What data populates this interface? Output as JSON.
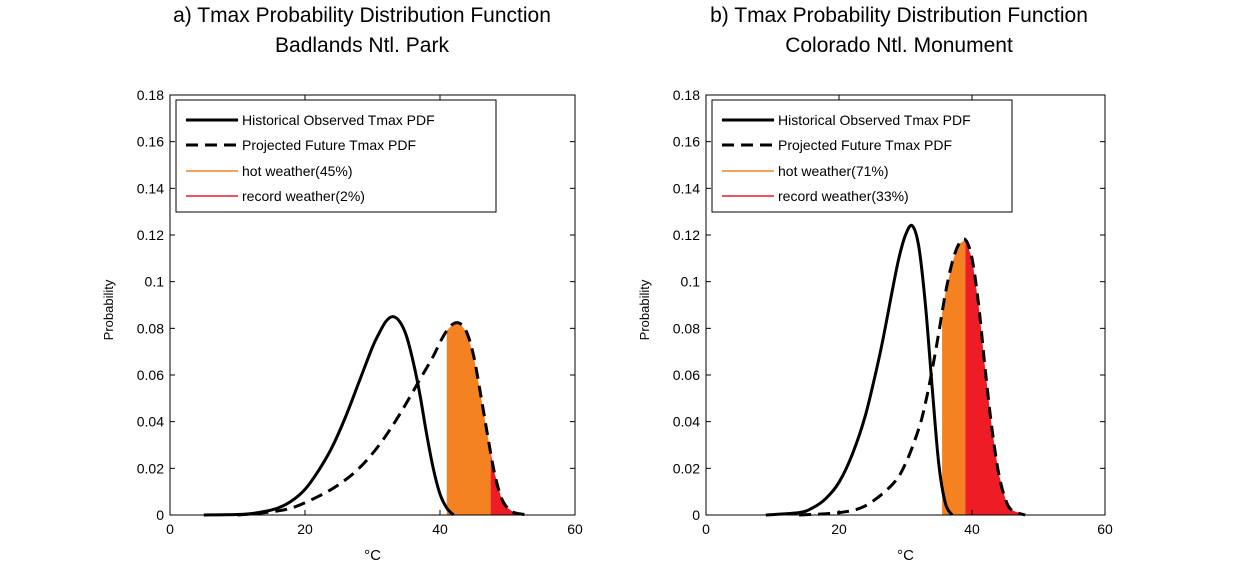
{
  "chart_data": [
    {
      "type": "line",
      "title": "a) Tmax Probability Distribution Function",
      "subtitle": "Badlands Ntl. Park",
      "xlabel": "°C",
      "ylabel": "Probability",
      "xlim": [
        0,
        60
      ],
      "ylim": [
        0,
        0.18
      ],
      "xticks": [
        "0",
        "20",
        "40",
        "60"
      ],
      "yticks": [
        "0",
        "0.02",
        "0.04",
        "0.06",
        "0.08",
        "0.1",
        "0.12",
        "0.14",
        "0.16",
        "0.18"
      ],
      "grid": false,
      "legend_position": "top-left",
      "series": [
        {
          "name": "Historical Observed Tmax PDF",
          "style": "solid",
          "color": "#000000",
          "x": [
            5,
            10,
            12,
            14,
            16,
            18,
            20,
            22,
            24,
            26,
            28,
            30,
            31,
            32,
            33,
            34,
            35,
            36,
            37,
            38,
            39,
            40,
            41,
            42
          ],
          "y": [
            0,
            0.0002,
            0.0006,
            0.0015,
            0.003,
            0.006,
            0.011,
            0.019,
            0.029,
            0.042,
            0.057,
            0.072,
            0.078,
            0.083,
            0.085,
            0.083,
            0.077,
            0.066,
            0.052,
            0.035,
            0.02,
            0.009,
            0.003,
            0
          ]
        },
        {
          "name": "Projected Future Tmax PDF",
          "style": "dashed",
          "color": "#000000",
          "x": [
            10,
            14,
            18,
            22,
            25,
            28,
            31,
            34,
            37,
            39,
            40,
            41,
            42,
            43,
            44,
            45,
            46,
            47,
            48,
            49,
            50,
            51,
            53
          ],
          "y": [
            0,
            0.001,
            0.003,
            0.008,
            0.013,
            0.02,
            0.03,
            0.043,
            0.058,
            0.068,
            0.074,
            0.079,
            0.082,
            0.082,
            0.078,
            0.068,
            0.052,
            0.035,
            0.019,
            0.008,
            0.003,
            0.001,
            0
          ]
        }
      ],
      "shaded_regions": [
        {
          "name": "hot weather(45%)",
          "color": "#f58220",
          "x_from": 41,
          "x_to": 47.5
        },
        {
          "name": "record weather(2%)",
          "color": "#ee1c24",
          "x_from": 47.5,
          "x_to": 53
        }
      ]
    },
    {
      "type": "line",
      "title": "b) Tmax Probability Distribution Function",
      "subtitle": "Colorado Ntl. Monument",
      "xlabel": "°C",
      "ylabel": "Probability",
      "xlim": [
        0,
        60
      ],
      "ylim": [
        0,
        0.18
      ],
      "xticks": [
        "0",
        "20",
        "40",
        "60"
      ],
      "yticks": [
        "0",
        "0.02",
        "0.04",
        "0.06",
        "0.08",
        "0.1",
        "0.12",
        "0.14",
        "0.16",
        "0.18"
      ],
      "grid": false,
      "legend_position": "top-left",
      "series": [
        {
          "name": "Historical Observed Tmax PDF",
          "style": "solid",
          "color": "#000000",
          "x": [
            9,
            14,
            16,
            18,
            20,
            22,
            24,
            26,
            27,
            28,
            29,
            30,
            31,
            32,
            33,
            34,
            35,
            36,
            37
          ],
          "y": [
            0,
            0.001,
            0.003,
            0.007,
            0.014,
            0.026,
            0.043,
            0.067,
            0.081,
            0.096,
            0.11,
            0.12,
            0.124,
            0.115,
            0.09,
            0.055,
            0.022,
            0.005,
            0
          ]
        },
        {
          "name": "Projected Future Tmax PDF",
          "style": "dashed",
          "color": "#000000",
          "x": [
            14,
            20,
            24,
            28,
            30,
            32,
            33,
            34,
            35,
            36,
            37,
            38,
            39,
            40,
            41,
            42,
            43,
            44,
            45,
            46,
            48
          ],
          "y": [
            0,
            0.001,
            0.004,
            0.013,
            0.022,
            0.037,
            0.048,
            0.062,
            0.078,
            0.095,
            0.108,
            0.116,
            0.118,
            0.11,
            0.09,
            0.062,
            0.037,
            0.018,
            0.007,
            0.002,
            0
          ]
        }
      ],
      "shaded_regions": [
        {
          "name": "hot weather(71%)",
          "color": "#f58220",
          "x_from": 35.5,
          "x_to": 39
        },
        {
          "name": "record weather(33%)",
          "color": "#ee1c24",
          "x_from": 39,
          "x_to": 48
        }
      ]
    }
  ]
}
